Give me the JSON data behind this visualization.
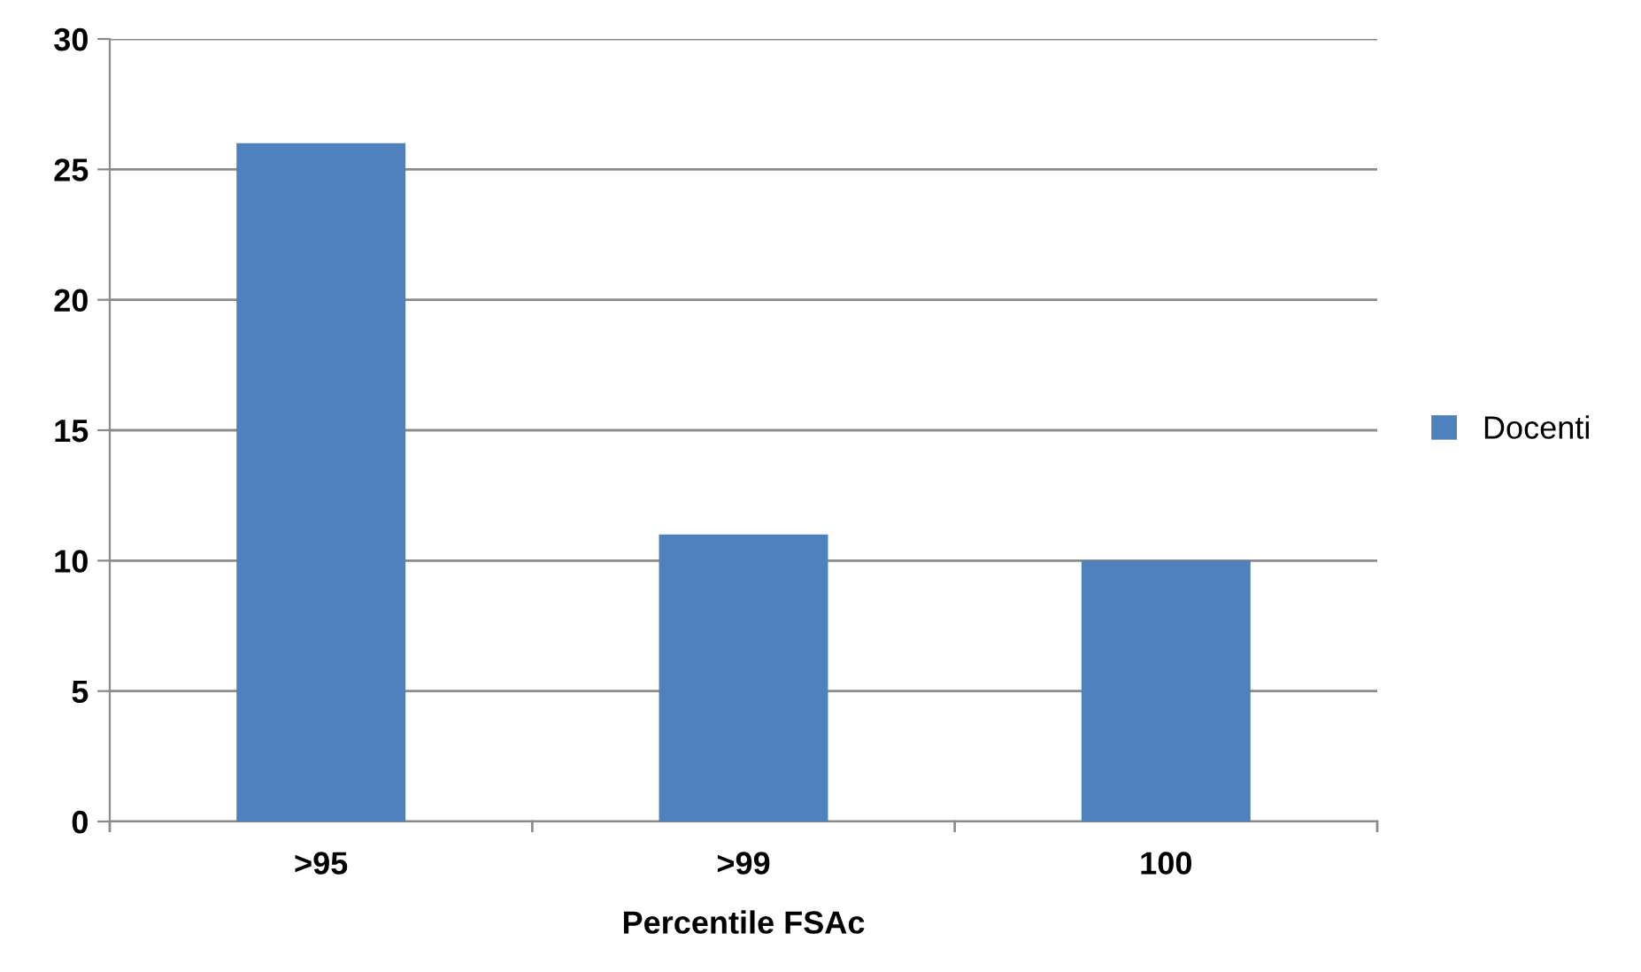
{
  "chart_data": {
    "type": "bar",
    "xlabel": "Percentile FSAc",
    "categories": [
      ">95",
      ">99",
      "100"
    ],
    "series": [
      {
        "name": "Docenti",
        "color": "#4f81bd",
        "values": [
          26,
          11,
          10
        ]
      }
    ],
    "ylim": [
      0,
      30
    ],
    "yticks": [
      0,
      5,
      10,
      15,
      20,
      25,
      30
    ],
    "grid": "y",
    "legend": "right"
  }
}
